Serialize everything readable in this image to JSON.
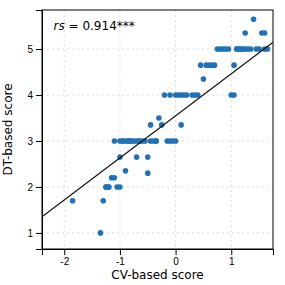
{
  "chart_data": {
    "type": "scatter",
    "xlabel": "CV-based score",
    "ylabel": "DT-based score",
    "annotation": [
      "rs",
      " = 0.914***"
    ],
    "xlim": [
      -2.4,
      1.75
    ],
    "ylim": [
      0.65,
      5.85
    ],
    "xticks": [
      -2,
      -1,
      0,
      1
    ],
    "yticks": [
      1,
      2,
      3,
      4,
      5
    ],
    "grid": true,
    "series": [
      {
        "type": "scatter",
        "color": "#2171b5",
        "x": [
          -1.85,
          -1.35,
          -1.3,
          -1.25,
          -1.25,
          -1.2,
          -1.2,
          -1.15,
          -1.1,
          -1.1,
          -1.05,
          -1.0,
          -1.0,
          -1.0,
          -0.95,
          -0.95,
          -0.9,
          -0.9,
          -0.85,
          -0.85,
          -0.8,
          -0.8,
          -0.75,
          -0.7,
          -0.7,
          -0.65,
          -0.65,
          -0.6,
          -0.55,
          -0.5,
          -0.5,
          -0.45,
          -0.45,
          -0.4,
          -0.35,
          -0.35,
          -0.3,
          -0.25,
          -0.2,
          -0.15,
          -0.1,
          -0.1,
          -0.05,
          0.0,
          0.0,
          0.05,
          0.1,
          0.1,
          0.15,
          0.2,
          0.3,
          0.35,
          0.4,
          0.45,
          0.5,
          0.55,
          0.6,
          0.65,
          0.7,
          0.75,
          0.8,
          0.85,
          0.9,
          0.95,
          1.0,
          1.05,
          1.05,
          1.1,
          1.1,
          1.15,
          1.15,
          1.2,
          1.2,
          1.25,
          1.25,
          1.3,
          1.35,
          1.4,
          1.45,
          1.5,
          1.55,
          1.6,
          1.6,
          1.65
        ],
        "values": [
          1.7,
          1.0,
          1.7,
          2.0,
          2.0,
          2.0,
          2.0,
          2.2,
          2.2,
          3.0,
          2.0,
          2.0,
          2.65,
          3.0,
          3.0,
          3.0,
          2.35,
          3.0,
          3.0,
          3.0,
          3.0,
          3.0,
          3.0,
          2.65,
          3.0,
          3.0,
          3.0,
          3.0,
          3.0,
          2.3,
          2.65,
          3.0,
          3.35,
          3.0,
          3.0,
          3.0,
          3.5,
          3.35,
          4.0,
          3.0,
          3.0,
          4.0,
          3.0,
          3.0,
          4.0,
          4.0,
          3.35,
          4.0,
          4.0,
          4.0,
          4.0,
          4.0,
          4.0,
          4.65,
          4.35,
          4.65,
          4.65,
          4.65,
          4.65,
          5.0,
          5.0,
          5.0,
          5.0,
          5.0,
          4.0,
          4.0,
          4.65,
          5.0,
          5.0,
          5.0,
          5.0,
          5.0,
          5.0,
          5.0,
          5.35,
          5.0,
          5.0,
          5.65,
          5.0,
          5.0,
          5.35,
          5.0,
          5.35,
          5.0
        ]
      },
      {
        "type": "line",
        "color": "#111111",
        "x": [
          -2.4,
          1.75
        ],
        "values": [
          1.35,
          5.15
        ]
      }
    ]
  }
}
